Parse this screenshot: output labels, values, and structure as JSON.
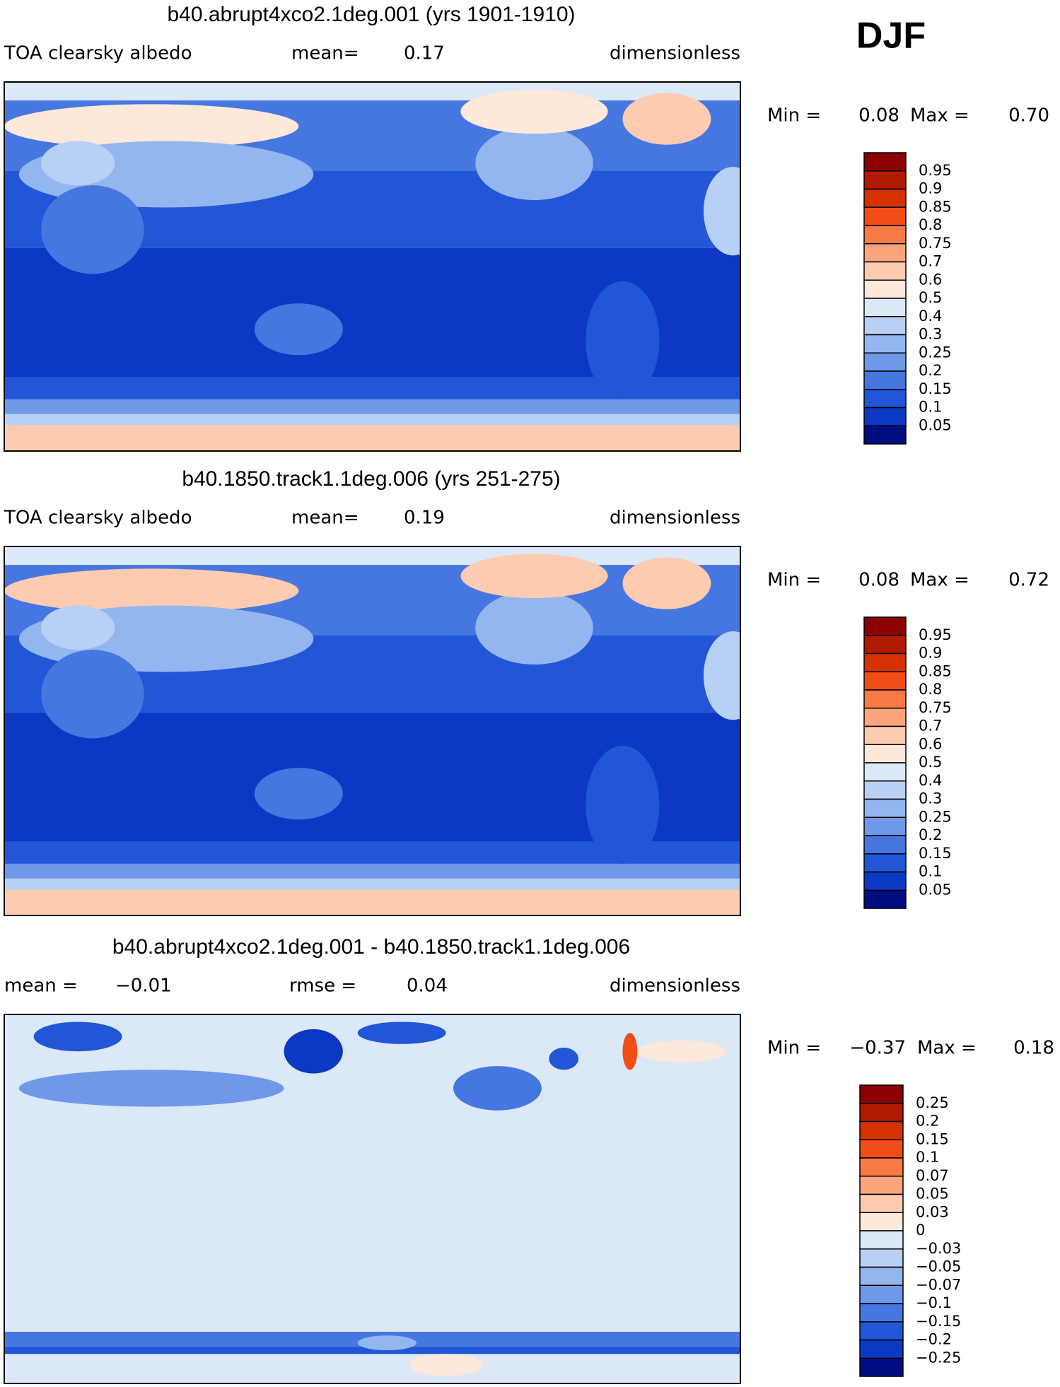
{
  "header": {
    "season": "DJF"
  },
  "panels": [
    {
      "title": "b40.abrupt4xco2.1deg.001 (yrs 1901-1910)",
      "subtitle": [
        "TOA clearsky albedo",
        "mean=",
        "0.17",
        "dimensionless"
      ],
      "range": [
        "Min =",
        "0.08",
        "Max =",
        "0.70"
      ],
      "colorbar": {
        "colors": [
          "#8b0000",
          "#b01a00",
          "#d43200",
          "#f04d17",
          "#f87a45",
          "#fba57c",
          "#fdcbb0",
          "#fde8d9",
          "#dbe8f8",
          "#b8d0f3",
          "#94b6ee",
          "#6e98e8",
          "#4677e0",
          "#2156d6",
          "#0c38c4",
          "#000c80"
        ],
        "labels": [
          "0.95",
          "0.9",
          "0.85",
          "0.8",
          "0.75",
          "0.7",
          "0.6",
          "0.5",
          "0.4",
          "0.3",
          "0.25",
          "0.2",
          "0.15",
          "0.1",
          "0.05"
        ]
      }
    },
    {
      "title": "b40.1850.track1.1deg.006 (yrs 251-275)",
      "subtitle": [
        "TOA clearsky albedo",
        "mean=",
        "0.19",
        "dimensionless"
      ],
      "range": [
        "Min =",
        "0.08",
        "Max =",
        "0.72"
      ],
      "colorbar": {
        "colors": [
          "#8b0000",
          "#b01a00",
          "#d43200",
          "#f04d17",
          "#f87a45",
          "#fba57c",
          "#fdcbb0",
          "#fde8d9",
          "#dbe8f8",
          "#b8d0f3",
          "#94b6ee",
          "#6e98e8",
          "#4677e0",
          "#2156d6",
          "#0c38c4",
          "#000c80"
        ],
        "labels": [
          "0.95",
          "0.9",
          "0.85",
          "0.8",
          "0.75",
          "0.7",
          "0.6",
          "0.5",
          "0.4",
          "0.3",
          "0.25",
          "0.2",
          "0.15",
          "0.1",
          "0.05"
        ]
      }
    },
    {
      "title": "b40.abrupt4xco2.1deg.001 - b40.1850.track1.1deg.006",
      "subtitle": [
        "mean =",
        "−0.01",
        "rmse =",
        "0.04",
        "dimensionless"
      ],
      "range": [
        "Min =",
        "−0.37",
        "Max =",
        "0.18"
      ],
      "colorbar": {
        "colors": [
          "#8b0000",
          "#b01a00",
          "#d43200",
          "#f04d17",
          "#f87a45",
          "#fba57c",
          "#fdcbb0",
          "#fde8d9",
          "#dbe8f8",
          "#b8d0f3",
          "#94b6ee",
          "#6e98e8",
          "#4677e0",
          "#2156d6",
          "#0c38c4",
          "#000c80"
        ],
        "labels": [
          "0.25",
          "0.2",
          "0.15",
          "0.1",
          "0.07",
          "0.05",
          "0.03",
          "0",
          "−0.03",
          "−0.05",
          "−0.07",
          "−0.1",
          "−0.15",
          "−0.2",
          "−0.25"
        ]
      }
    }
  ]
}
